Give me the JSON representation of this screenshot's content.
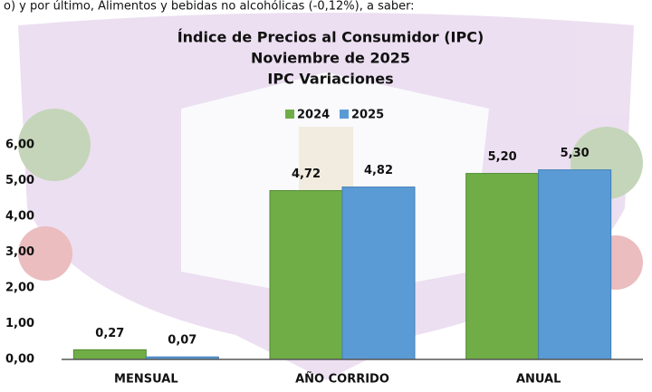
{
  "page_text": "o) y por último, Alimentos y bebidas no alcohólicas (-0,12%), a saber:",
  "chart_data": {
    "type": "bar",
    "title": [
      "Índice de Precios al Consumidor (IPC)",
      "Noviembre de 2025",
      "IPC Variaciones"
    ],
    "categories": [
      "MENSUAL",
      "AÑO CORRIDO",
      "ANUAL"
    ],
    "series": [
      {
        "name": "2024",
        "color": "#70ad47",
        "values": [
          0.27,
          4.72,
          5.2
        ],
        "value_labels": [
          "0,27",
          "4,72",
          "5,20"
        ]
      },
      {
        "name": "2025",
        "color": "#5b9bd5",
        "values": [
          0.07,
          4.82,
          5.3
        ],
        "value_labels": [
          "0,07",
          "4,82",
          "5,30"
        ]
      }
    ],
    "ylim": [
      0,
      6
    ],
    "yticks": [
      {
        "value": 0,
        "label": "0,00"
      },
      {
        "value": 1,
        "label": "1,00"
      },
      {
        "value": 2,
        "label": "2,00"
      },
      {
        "value": 3,
        "label": "3,00"
      },
      {
        "value": 4,
        "label": "4,00"
      },
      {
        "value": 5,
        "label": "5,00"
      },
      {
        "value": 6,
        "label": "6,00"
      }
    ],
    "legend": "top"
  }
}
